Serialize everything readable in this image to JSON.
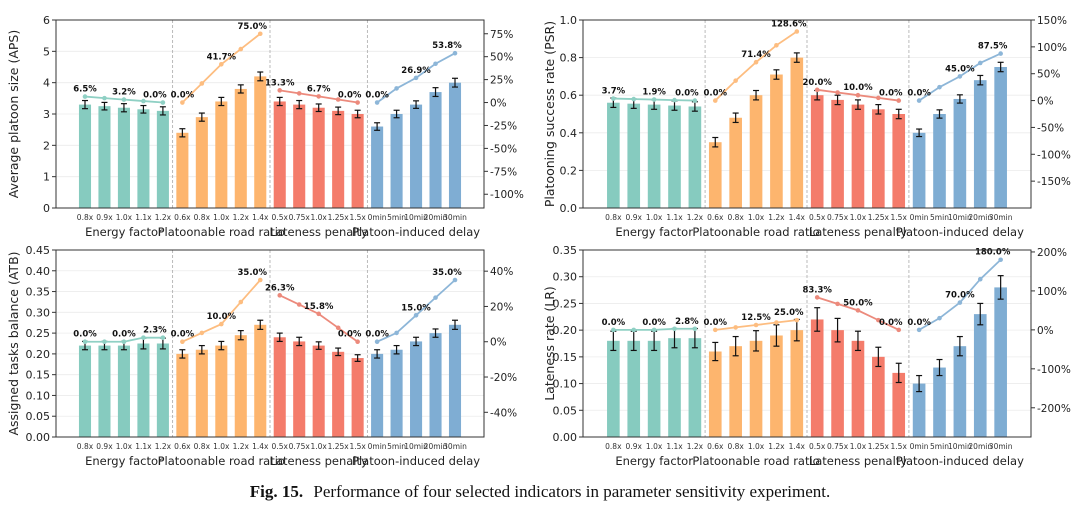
{
  "caption": {
    "label": "Fig. 15.",
    "text": "Performance of four selected indicators in parameter sensitivity experiment."
  },
  "colors": {
    "Energy factor": "#86cbbf",
    "Platoonable road ratio": "#fdb56e",
    "Lateness penalty": "#f47c6b",
    "Platoon-induced delay": "#7fadd3"
  },
  "chart_data": [
    {
      "type": "bar",
      "title": "",
      "ylabel": "Average platoon size (APS)",
      "ylim": [
        0,
        6
      ],
      "yticks": [
        0,
        1,
        2,
        3,
        4,
        5,
        6
      ],
      "ytick_labels": [
        "0",
        "1",
        "2",
        "3",
        "4",
        "5",
        "6"
      ],
      "y2lim": [
        -115,
        90
      ],
      "y2ticks": [
        -100,
        -75,
        -50,
        -25,
        0,
        25,
        50,
        75
      ],
      "y2tick_labels": [
        "-100%",
        "-75%",
        "-50%",
        "-25%",
        "0%",
        "25%",
        "50%",
        "75%"
      ],
      "grid": true,
      "groups": [
        {
          "name": "Energy factor",
          "categories": [
            "0.8x",
            "0.9x",
            "1.0x",
            "1.1x",
            "1.2x"
          ],
          "values": [
            3.3,
            3.25,
            3.2,
            3.15,
            3.1
          ],
          "errors": [
            0.13,
            0.12,
            0.13,
            0.12,
            0.13
          ],
          "pct": [
            6.5,
            4.8,
            3.2,
            1.6,
            0.0
          ],
          "pct_labels": [
            "6.5%",
            "",
            "3.2%",
            "",
            "0.0%"
          ]
        },
        {
          "name": "Platoonable road ratio",
          "categories": [
            "0.6x",
            "0.8x",
            "1.0x",
            "1.2x",
            "1.4x"
          ],
          "values": [
            2.4,
            2.9,
            3.4,
            3.8,
            4.2
          ],
          "errors": [
            0.13,
            0.13,
            0.13,
            0.13,
            0.14
          ],
          "pct": [
            0.0,
            20.8,
            41.7,
            58.3,
            75.0
          ],
          "pct_labels": [
            "0.0%",
            "",
            "41.7%",
            "",
            "75.0%"
          ]
        },
        {
          "name": "Lateness penalty",
          "categories": [
            "0.5x",
            "0.75x",
            "1.0x",
            "1.25x",
            "1.5x"
          ],
          "values": [
            3.4,
            3.3,
            3.2,
            3.1,
            3.0
          ],
          "errors": [
            0.13,
            0.13,
            0.12,
            0.12,
            0.12
          ],
          "pct": [
            13.3,
            10.0,
            6.7,
            3.3,
            0.0
          ],
          "pct_labels": [
            "13.3%",
            "",
            "6.7%",
            "",
            "0.0%"
          ]
        },
        {
          "name": "Platoon-induced delay",
          "categories": [
            "0min",
            "5min",
            "10min",
            "20min",
            "30min"
          ],
          "values": [
            2.6,
            3.0,
            3.3,
            3.7,
            4.0
          ],
          "errors": [
            0.12,
            0.12,
            0.12,
            0.14,
            0.14
          ],
          "pct": [
            0.0,
            15.4,
            26.9,
            42.3,
            53.8
          ],
          "pct_labels": [
            "0.0%",
            "",
            "26.9%",
            "",
            "53.8%"
          ]
        }
      ]
    },
    {
      "type": "bar",
      "title": "",
      "ylabel": "Platooning success rate (PSR)",
      "ylim": [
        0,
        1.0
      ],
      "yticks": [
        0.0,
        0.2,
        0.4,
        0.6,
        0.8,
        1.0
      ],
      "ytick_labels": [
        "0.0",
        "0.2",
        "0.4",
        "0.6",
        "0.8",
        "1.0"
      ],
      "y2lim": [
        -200,
        150
      ],
      "y2ticks": [
        -150,
        -100,
        -50,
        0,
        50,
        100,
        150
      ],
      "y2tick_labels": [
        "-150%",
        "-100%",
        "-50%",
        "0%",
        "50%",
        "100%",
        "150%"
      ],
      "grid": true,
      "groups": [
        {
          "name": "Energy factor",
          "categories": [
            "0.8x",
            "0.9x",
            "1.0x",
            "1.1x",
            "1.2x"
          ],
          "values": [
            0.56,
            0.555,
            0.55,
            0.545,
            0.54
          ],
          "errors": [
            0.025,
            0.025,
            0.025,
            0.025,
            0.025
          ],
          "pct": [
            3.7,
            2.8,
            1.9,
            0.9,
            0.0
          ],
          "pct_labels": [
            "3.7%",
            "",
            "1.9%",
            "",
            "0.0%"
          ]
        },
        {
          "name": "Platoonable road ratio",
          "categories": [
            "0.6x",
            "0.8x",
            "1.0x",
            "1.2x",
            "1.4x"
          ],
          "values": [
            0.35,
            0.48,
            0.6,
            0.71,
            0.8
          ],
          "errors": [
            0.025,
            0.025,
            0.025,
            0.025,
            0.025
          ],
          "pct": [
            0.0,
            37.1,
            71.4,
            102.9,
            128.6
          ],
          "pct_labels": [
            "0.0%",
            "",
            "71.4%",
            "",
            "128.6%"
          ]
        },
        {
          "name": "Lateness penalty",
          "categories": [
            "0.5x",
            "0.75x",
            "1.0x",
            "1.25x",
            "1.5x"
          ],
          "values": [
            0.6,
            0.575,
            0.55,
            0.525,
            0.5
          ],
          "errors": [
            0.025,
            0.025,
            0.025,
            0.025,
            0.025
          ],
          "pct": [
            20.0,
            15.0,
            10.0,
            5.0,
            0.0
          ],
          "pct_labels": [
            "20.0%",
            "",
            "10.0%",
            "",
            "0.0%"
          ]
        },
        {
          "name": "Platoon-induced delay",
          "categories": [
            "0min",
            "5min",
            "10min",
            "20min",
            "30min"
          ],
          "values": [
            0.4,
            0.5,
            0.58,
            0.68,
            0.75
          ],
          "errors": [
            0.02,
            0.022,
            0.022,
            0.025,
            0.025
          ],
          "pct": [
            0.0,
            25.0,
            45.0,
            70.0,
            87.5
          ],
          "pct_labels": [
            "0.0%",
            "",
            "45.0%",
            "",
            "87.5%"
          ]
        }
      ]
    },
    {
      "type": "bar",
      "title": "",
      "ylabel": "Assigned tasks balance (ATB)",
      "ylim": [
        0,
        0.45
      ],
      "yticks": [
        0.0,
        0.05,
        0.1,
        0.15,
        0.2,
        0.25,
        0.3,
        0.35,
        0.4,
        0.45
      ],
      "ytick_labels": [
        "0.00",
        "0.05",
        "0.10",
        "0.15",
        "0.20",
        "0.25",
        "0.30",
        "0.35",
        "0.40",
        "0.45"
      ],
      "y2lim": [
        -54,
        52
      ],
      "y2ticks": [
        -40,
        -20,
        0,
        20,
        40
      ],
      "y2tick_labels": [
        "-40%",
        "-20%",
        "0%",
        "20%",
        "40%"
      ],
      "grid": true,
      "groups": [
        {
          "name": "Energy factor",
          "categories": [
            "0.8x",
            "0.9x",
            "1.0x",
            "1.1x",
            "1.2x"
          ],
          "values": [
            0.22,
            0.22,
            0.22,
            0.225,
            0.225
          ],
          "errors": [
            0.01,
            0.01,
            0.01,
            0.013,
            0.013
          ],
          "pct": [
            0.0,
            0.0,
            0.0,
            2.3,
            2.3
          ],
          "pct_labels": [
            "0.0%",
            "",
            "0.0%",
            "",
            "2.3%"
          ]
        },
        {
          "name": "Platoonable road ratio",
          "categories": [
            "0.6x",
            "0.8x",
            "1.0x",
            "1.2x",
            "1.4x"
          ],
          "values": [
            0.2,
            0.21,
            0.22,
            0.245,
            0.27
          ],
          "errors": [
            0.01,
            0.01,
            0.01,
            0.011,
            0.011
          ],
          "pct": [
            0.0,
            5.0,
            10.0,
            22.5,
            35.0
          ],
          "pct_labels": [
            "0.0%",
            "",
            "10.0%",
            "",
            "35.0%"
          ]
        },
        {
          "name": "Lateness penalty",
          "categories": [
            "0.5x",
            "0.75x",
            "1.0x",
            "1.25x",
            "1.5x"
          ],
          "values": [
            0.24,
            0.23,
            0.22,
            0.205,
            0.19
          ],
          "errors": [
            0.01,
            0.01,
            0.009,
            0.009,
            0.008
          ],
          "pct": [
            26.3,
            21.1,
            15.8,
            7.9,
            0.0
          ],
          "pct_labels": [
            "26.3%",
            "",
            "15.8%",
            "",
            "0.0%"
          ]
        },
        {
          "name": "Platoon-induced delay",
          "categories": [
            "0min",
            "5min",
            "10min",
            "20min",
            "30min"
          ],
          "values": [
            0.2,
            0.21,
            0.23,
            0.25,
            0.27
          ],
          "errors": [
            0.01,
            0.01,
            0.01,
            0.01,
            0.011
          ],
          "pct": [
            0.0,
            5.0,
            15.0,
            25.0,
            35.0
          ],
          "pct_labels": [
            "0.0%",
            "",
            "15.0%",
            "",
            "35.0%"
          ]
        }
      ]
    },
    {
      "type": "bar",
      "title": "",
      "ylabel": "Lateness rate (LR)",
      "ylim": [
        0,
        0.35
      ],
      "yticks": [
        0.0,
        0.05,
        0.1,
        0.15,
        0.2,
        0.25,
        0.3,
        0.35
      ],
      "ytick_labels": [
        "0.00",
        "0.05",
        "0.10",
        "0.15",
        "0.20",
        "0.25",
        "0.30",
        "0.35"
      ],
      "y2lim": [
        -275,
        205
      ],
      "y2ticks": [
        -200,
        -100,
        0,
        100,
        200
      ],
      "y2tick_labels": [
        "-200%",
        "-100%",
        "0%",
        "100%",
        "200%"
      ],
      "grid": true,
      "groups": [
        {
          "name": "Energy factor",
          "categories": [
            "0.8x",
            "0.9x",
            "1.0x",
            "1.1x",
            "1.2x"
          ],
          "values": [
            0.18,
            0.18,
            0.18,
            0.185,
            0.185
          ],
          "errors": [
            0.018,
            0.018,
            0.018,
            0.018,
            0.018
          ],
          "pct": [
            0.0,
            0.0,
            0.0,
            2.8,
            2.8
          ],
          "pct_labels": [
            "0.0%",
            "",
            "0.0%",
            "",
            "2.8%"
          ]
        },
        {
          "name": "Platoonable road ratio",
          "categories": [
            "0.6x",
            "0.8x",
            "1.0x",
            "1.2x",
            "1.4x"
          ],
          "values": [
            0.16,
            0.17,
            0.18,
            0.19,
            0.2
          ],
          "errors": [
            0.017,
            0.018,
            0.019,
            0.02,
            0.02
          ],
          "pct": [
            0.0,
            6.3,
            12.5,
            18.8,
            25.0
          ],
          "pct_labels": [
            "0.0%",
            "",
            "12.5%",
            "",
            "25.0%"
          ]
        },
        {
          "name": "Lateness penalty",
          "categories": [
            "0.5x",
            "0.75x",
            "1.0x",
            "1.25x",
            "1.5x"
          ],
          "values": [
            0.22,
            0.2,
            0.18,
            0.15,
            0.12
          ],
          "errors": [
            0.022,
            0.022,
            0.018,
            0.018,
            0.018
          ],
          "pct": [
            83.3,
            66.7,
            50.0,
            25.0,
            0.0
          ],
          "pct_labels": [
            "83.3%",
            "",
            "50.0%",
            "",
            "0.0%"
          ]
        },
        {
          "name": "Platoon-induced delay",
          "categories": [
            "0min",
            "5min",
            "10min",
            "20min",
            "30min"
          ],
          "values": [
            0.1,
            0.13,
            0.17,
            0.23,
            0.28
          ],
          "errors": [
            0.015,
            0.015,
            0.018,
            0.02,
            0.022
          ],
          "pct": [
            0.0,
            30.0,
            70.0,
            130.0,
            180.0
          ],
          "pct_labels": [
            "0.0%",
            "",
            "70.0%",
            "",
            "180.0%"
          ]
        }
      ]
    }
  ]
}
